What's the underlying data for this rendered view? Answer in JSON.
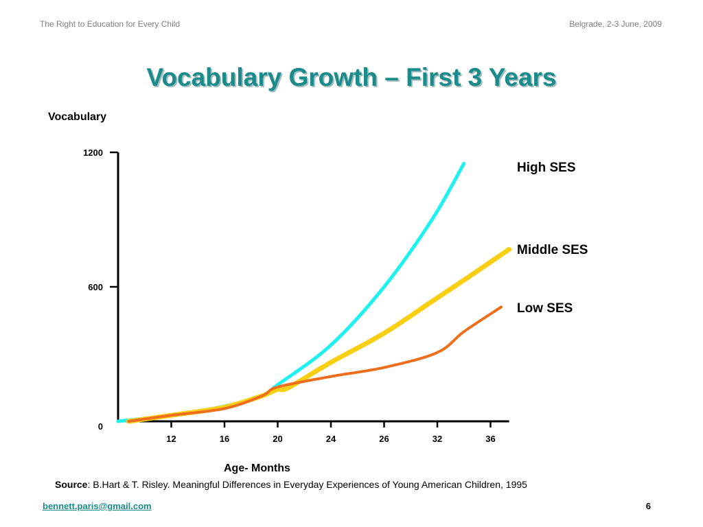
{
  "header": {
    "left": "The Right to Education for Every Child",
    "right": "Belgrade, 2-3 June, 2009"
  },
  "title": "Vocabulary Growth – First 3 Years",
  "source": {
    "label": "Source",
    "text": ": B.Hart & T. Risley. Meaningful Differences in Everyday Experiences of Young American Children, 1995"
  },
  "footer": {
    "email": "bennett.paris@gmail.com",
    "page": "6"
  },
  "colors": {
    "title": "#1a8a8a",
    "high_ses": "#1ff0f0",
    "middle_ses": "#f9cf14",
    "low_ses": "#ee6e1c"
  },
  "chart_data": {
    "type": "line",
    "ylabel": "Vocabulary",
    "xlabel": "Age- Months",
    "ylim": [
      0,
      1200
    ],
    "yticks": [
      0,
      600,
      1200
    ],
    "x_tick_labels": [
      "12",
      "16",
      "20",
      "24",
      "26",
      "32",
      "36"
    ],
    "x_tick_index": [
      1,
      2,
      3,
      4,
      5,
      6,
      7
    ],
    "xlim_index": [
      0,
      7.35
    ],
    "grid": false,
    "legend": "right, labels beside line ends",
    "series": [
      {
        "name": "High SES",
        "color": "#1ff0f0",
        "points": [
          [
            0,
            0
          ],
          [
            1,
            27
          ],
          [
            2,
            67
          ],
          [
            2.7,
            113
          ],
          [
            3,
            163
          ],
          [
            4,
            340
          ],
          [
            5,
            600
          ],
          [
            5.9,
            900
          ],
          [
            6.5,
            1150
          ]
        ]
      },
      {
        "name": "Middle SES",
        "color": "#f9cf14",
        "points": [
          [
            0.2,
            0
          ],
          [
            1,
            27
          ],
          [
            2,
            63
          ],
          [
            2.7,
            113
          ],
          [
            3,
            143
          ],
          [
            3.2,
            150
          ],
          [
            4,
            263
          ],
          [
            5,
            393
          ],
          [
            5.9,
            535
          ],
          [
            6.5,
            630
          ],
          [
            7.35,
            767
          ]
        ]
      },
      {
        "name": "Low SES",
        "color": "#ee6e1c",
        "points": [
          [
            0.2,
            0
          ],
          [
            1,
            27
          ],
          [
            2,
            57
          ],
          [
            2.7,
            113
          ],
          [
            3,
            153
          ],
          [
            4,
            200
          ],
          [
            5,
            240
          ],
          [
            6,
            307
          ],
          [
            6.5,
            400
          ],
          [
            7.2,
            510
          ]
        ]
      }
    ]
  }
}
